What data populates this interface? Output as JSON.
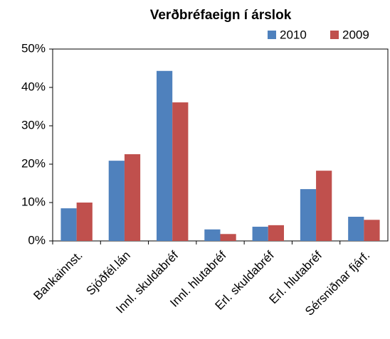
{
  "chart_data": {
    "type": "bar",
    "title": "Verðbréfaeign í árslok",
    "categories": [
      "Bankainnst.",
      "Sjóðfél.lán",
      "Innl. skuldabréf",
      "Innl. hlutabréf",
      "Erl. skuldabréf",
      "Erl. hlutabréf",
      "Sérsniðnar fjárf."
    ],
    "series": [
      {
        "name": "2010",
        "color": "#4f81bd",
        "values": [
          8.5,
          20.9,
          44.3,
          3.0,
          3.7,
          13.5,
          6.3
        ]
      },
      {
        "name": "2009",
        "color": "#c0504d",
        "values": [
          10.0,
          22.6,
          36.1,
          1.8,
          4.1,
          18.3,
          5.5
        ]
      }
    ],
    "ylim": [
      0,
      50
    ],
    "yticks": [
      {
        "value": 0,
        "label": "0%"
      },
      {
        "value": 10,
        "label": "10%"
      },
      {
        "value": 20,
        "label": "20%"
      },
      {
        "value": 30,
        "label": "30%"
      },
      {
        "value": 40,
        "label": "40%"
      },
      {
        "value": 50,
        "label": "50%"
      }
    ],
    "grid": false,
    "legend": "top-right"
  }
}
